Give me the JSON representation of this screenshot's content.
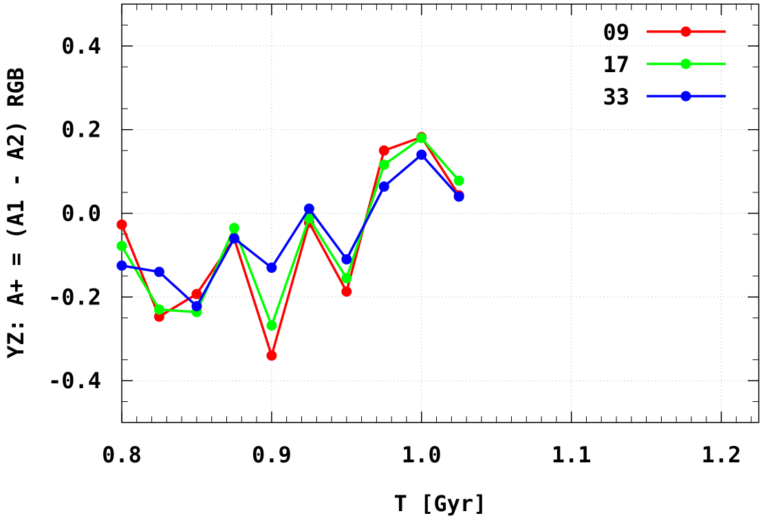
{
  "chart_data": {
    "type": "line",
    "xlabel": "T [Gyr]",
    "ylabel": "YZ: A+ = (A1 - A2) RGB",
    "xlim": [
      0.8,
      1.225
    ],
    "ylim": [
      -0.5,
      0.5
    ],
    "x_ticks": [
      "0.8",
      "0.9",
      "1.0",
      "1.1",
      "1.2"
    ],
    "y_ticks": [
      "0.4",
      "0.2",
      "0.0",
      "-0.2",
      "-0.4"
    ],
    "grid": true,
    "legend_position": "top-right",
    "x": [
      0.8,
      0.825,
      0.85,
      0.875,
      0.9,
      0.925,
      0.95,
      0.975,
      1.0,
      1.025
    ],
    "series": [
      {
        "name": "09",
        "color": "#ff0000",
        "values": [
          -0.027,
          -0.247,
          -0.193,
          -0.06,
          -0.34,
          -0.022,
          -0.187,
          0.15,
          0.182,
          0.043
        ]
      },
      {
        "name": "17",
        "color": "#00ff00",
        "values": [
          -0.078,
          -0.23,
          -0.236,
          -0.035,
          -0.268,
          -0.012,
          -0.155,
          0.116,
          0.18,
          0.078
        ]
      },
      {
        "name": "33",
        "color": "#0000ff",
        "values": [
          -0.125,
          -0.14,
          -0.222,
          -0.06,
          -0.13,
          0.011,
          -0.11,
          0.064,
          0.14,
          0.04
        ]
      }
    ]
  }
}
